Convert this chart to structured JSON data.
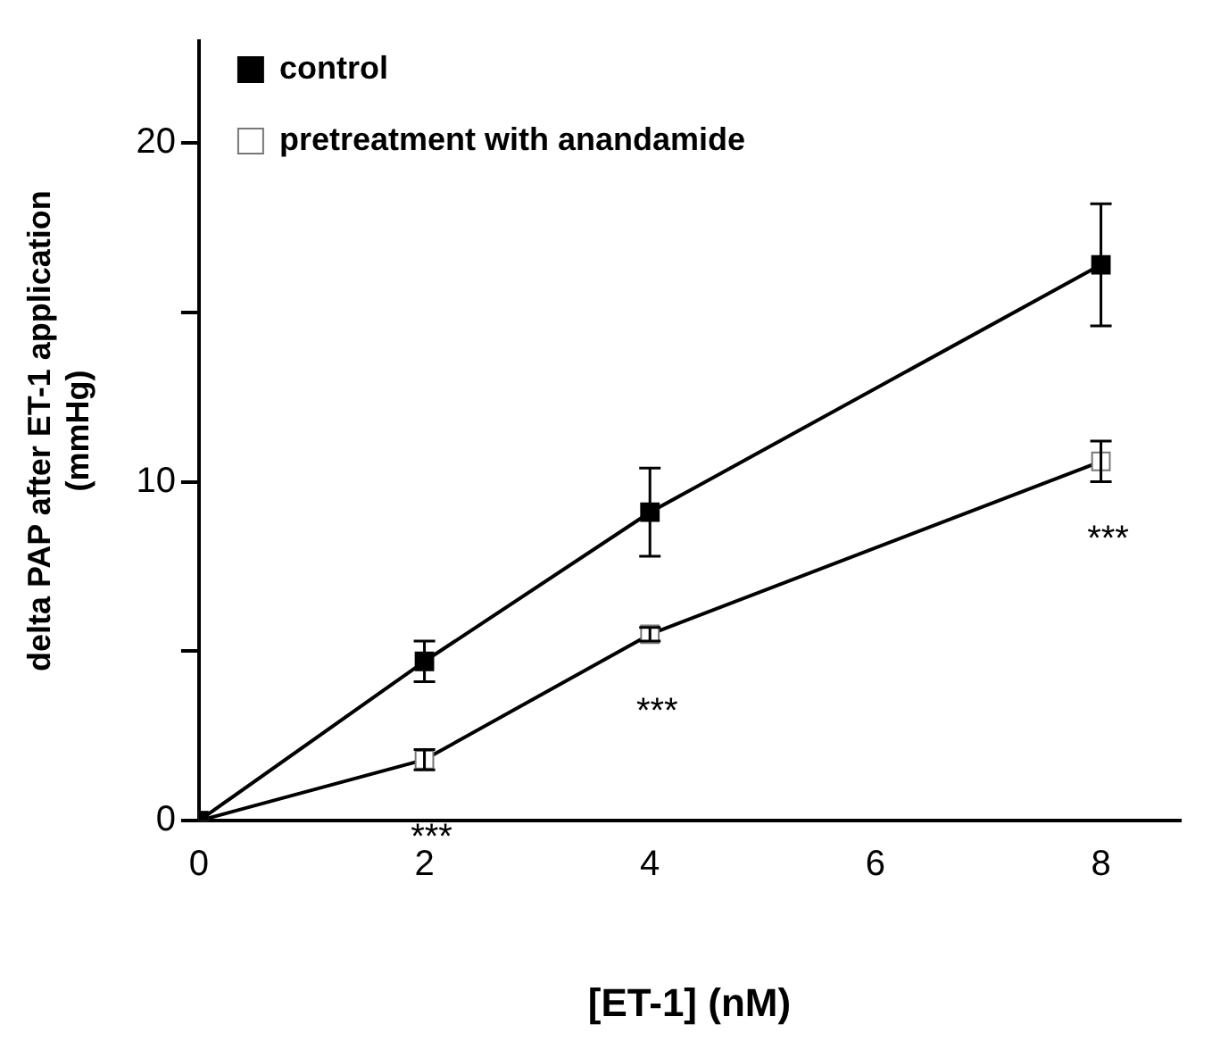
{
  "chart_data": {
    "type": "line",
    "xlabel": "[ET-1] (nM)",
    "ylabel": "delta PAP after ET-1 application\n(mmHg)",
    "xlim": [
      0,
      8.7
    ],
    "xticks": [
      0,
      2,
      4,
      6,
      8
    ],
    "ylim": [
      0,
      23
    ],
    "yticks": [
      0,
      {
        "value": 5,
        "label": null
      },
      10,
      {
        "value": 15,
        "label": null
      },
      20
    ],
    "grid": false,
    "legend": "top left",
    "marker": "square",
    "line_style": "solid",
    "series": [
      {
        "name": "control",
        "color": "#000000",
        "x": [
          0,
          2,
          4,
          8
        ],
        "values": [
          0,
          4.7,
          9.1,
          16.4
        ],
        "errors": [
          null,
          0.6,
          1.3,
          1.8
        ]
      },
      {
        "name": "pretreatment with anandamide",
        "color": "#ffffff",
        "x": [
          0,
          2,
          4,
          8
        ],
        "values": [
          0,
          1.8,
          5.5,
          10.6
        ],
        "errors": [
          null,
          0.3,
          0.2,
          0.6
        ]
      }
    ],
    "annotations": [
      "***",
      "***",
      "***"
    ]
  }
}
